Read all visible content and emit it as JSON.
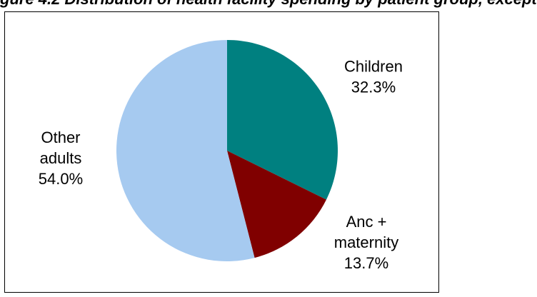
{
  "caption": "gure 4.2 Distribution of health facility spending by patient group, except",
  "chart_data": {
    "type": "pie",
    "title": "",
    "slices": [
      {
        "label_lines": [
          "Children",
          "32.3%"
        ],
        "category": "Children",
        "value": 32.3,
        "color": "#008080"
      },
      {
        "label_lines": [
          "Anc +",
          "maternity",
          "13.7%"
        ],
        "category": "Anc + maternity",
        "value": 13.7,
        "color": "#800000"
      },
      {
        "label_lines": [
          "Other",
          "adults",
          "54.0%"
        ],
        "category": "Other adults",
        "value": 54.0,
        "color": "#A6CAF0"
      }
    ],
    "start_angle_deg": 0,
    "direction": "clockwise",
    "legend": "none"
  }
}
